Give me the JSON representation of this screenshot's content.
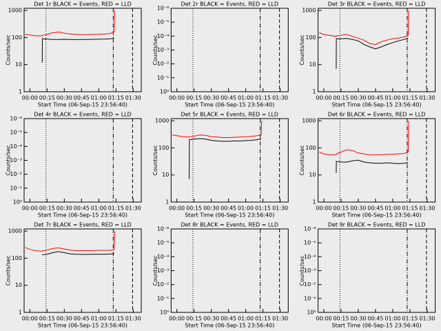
{
  "chart_data": [
    {
      "type": "line",
      "title": "Det 1r BLACK = Events, RED = LLD",
      "ylabel": "Counts/sec",
      "xlabel": "Start Time (06-Sep-15 23:56:40)",
      "log": true,
      "xlim": [
        -5,
        97
      ],
      "xticks": [
        {
          "value": 0,
          "label": "00:00"
        },
        {
          "value": 15,
          "label": "00:15"
        },
        {
          "value": 30,
          "label": "00:30"
        },
        {
          "value": 45,
          "label": "00:45"
        },
        {
          "value": 60,
          "label": "01:00"
        },
        {
          "value": 75,
          "label": "01:15"
        },
        {
          "value": 90,
          "label": "01:30"
        }
      ],
      "ylim": [
        1,
        1200
      ],
      "yticks": [
        1,
        10,
        100,
        1000
      ],
      "vlines": [
        {
          "value": 14,
          "style": "dotted"
        },
        {
          "value": 72.6,
          "style": "dash-dot"
        },
        {
          "value": 89.4,
          "style": "dashed"
        }
      ],
      "x": [
        -4,
        0,
        5,
        10.8,
        10.9,
        15,
        20,
        25,
        30,
        35,
        40,
        45,
        50,
        55,
        60,
        65,
        70,
        73.5,
        73.9
      ],
      "series": [
        {
          "color": "#000000",
          "values": [
            null,
            null,
            null,
            12,
            90,
            88,
            85,
            85,
            86,
            85,
            84,
            85,
            85,
            86,
            87,
            88,
            90,
            95,
            null
          ]
        },
        {
          "color": "#ff0000",
          "values": [
            130,
            125,
            115,
            115,
            120,
            130,
            150,
            160,
            145,
            135,
            130,
            128,
            128,
            130,
            132,
            135,
            140,
            170,
            1000
          ]
        }
      ]
    },
    {
      "type": "line",
      "title": "Det 2r BLACK = Events, RED = LLD",
      "ylabel": "Counts/sec",
      "xlabel": "Start Time (06-Sep-15 23:56:40)",
      "log": true,
      "xlim": [
        -5,
        97
      ],
      "xticks": [
        {
          "value": 0,
          "label": "00:00"
        },
        {
          "value": 15,
          "label": "00:15"
        },
        {
          "value": 30,
          "label": "00:30"
        },
        {
          "value": 45,
          "label": "00:45"
        },
        {
          "value": 60,
          "label": "01:00"
        },
        {
          "value": 75,
          "label": "01:15"
        },
        {
          "value": 90,
          "label": "01:30"
        }
      ],
      "ylim": [
        1,
        1e-06
      ],
      "yticks": [
        {
          "value": 1,
          "label": "10⁰"
        },
        {
          "value": 0.1,
          "label": "10⁻¹"
        },
        {
          "value": 0.01,
          "label": "10⁻²"
        },
        {
          "value": 0.001,
          "label": "10⁻³"
        },
        {
          "value": 0.0001,
          "label": "10⁻⁴"
        },
        {
          "value": 1e-05,
          "label": "10⁻⁵"
        },
        {
          "value": 1e-06,
          "label": "10⁻⁶"
        }
      ],
      "vlines": [
        {
          "value": 14,
          "style": "dotted"
        },
        {
          "value": 72.6,
          "style": "dash-dot"
        },
        {
          "value": 89.4,
          "style": "dashed"
        }
      ],
      "series": []
    },
    {
      "type": "line",
      "title": "Det 3r BLACK = Events, RED = LLD",
      "ylabel": "Counts/sec",
      "xlabel": "Start Time (06-Sep-15 23:56:40)",
      "log": true,
      "xlim": [
        -5,
        97
      ],
      "xticks": [
        {
          "value": 0,
          "label": "00:00"
        },
        {
          "value": 15,
          "label": "00:15"
        },
        {
          "value": 30,
          "label": "00:30"
        },
        {
          "value": 45,
          "label": "00:45"
        },
        {
          "value": 60,
          "label": "01:00"
        },
        {
          "value": 75,
          "label": "01:15"
        },
        {
          "value": 90,
          "label": "01:30"
        }
      ],
      "ylim": [
        1,
        1200
      ],
      "yticks": [
        1,
        10,
        100,
        1000
      ],
      "vlines": [
        {
          "value": 14,
          "style": "dotted"
        },
        {
          "value": 72.6,
          "style": "dash-dot"
        },
        {
          "value": 89.4,
          "style": "dashed"
        }
      ],
      "x": [
        -4,
        0,
        5,
        10.8,
        10.9,
        15,
        20,
        25,
        30,
        35,
        40,
        45,
        50,
        55,
        60,
        65,
        70,
        73.5,
        73.9
      ],
      "series": [
        {
          "color": "#000000",
          "values": [
            null,
            null,
            null,
            7,
            90,
            90,
            92,
            85,
            75,
            55,
            45,
            38,
            45,
            55,
            65,
            75,
            85,
            95,
            null
          ]
        },
        {
          "color": "#ff0000",
          "values": [
            150,
            130,
            120,
            110,
            115,
            120,
            130,
            110,
            95,
            80,
            60,
            55,
            70,
            80,
            90,
            95,
            105,
            120,
            1000
          ]
        }
      ]
    },
    {
      "type": "line",
      "title": "Det 4r BLACK = Events, RED = LLD",
      "ylabel": "Counts/sec",
      "xlabel": "Start Time (06-Sep-15 23:56:40)",
      "log": true,
      "xlim": [
        -5,
        97
      ],
      "xticks": [
        {
          "value": 0,
          "label": "00:00"
        },
        {
          "value": 15,
          "label": "00:15"
        },
        {
          "value": 30,
          "label": "00:30"
        },
        {
          "value": 45,
          "label": "00:45"
        },
        {
          "value": 60,
          "label": "01:00"
        },
        {
          "value": 75,
          "label": "01:15"
        },
        {
          "value": 90,
          "label": "01:30"
        }
      ],
      "ylim": [
        1,
        1e-06
      ],
      "yticks": [
        {
          "value": 1,
          "label": "10⁰"
        },
        {
          "value": 0.1,
          "label": "10⁻¹"
        },
        {
          "value": 0.01,
          "label": "10⁻²"
        },
        {
          "value": 0.001,
          "label": "10⁻³"
        },
        {
          "value": 0.0001,
          "label": "10⁻⁴"
        },
        {
          "value": 1e-05,
          "label": "10⁻⁵"
        },
        {
          "value": 1e-06,
          "label": "10⁻⁶"
        }
      ],
      "vlines": [
        {
          "value": 14,
          "style": "dotted"
        },
        {
          "value": 72.6,
          "style": "dash-dot"
        },
        {
          "value": 89.4,
          "style": "dashed"
        }
      ],
      "series": []
    },
    {
      "type": "line",
      "title": "Det 5r BLACK = Events, RED = LLD",
      "ylabel": "Counts/sec",
      "xlabel": "Start Time (06-Sep-15 23:56:40)",
      "log": true,
      "xlim": [
        -5,
        97
      ],
      "xticks": [
        {
          "value": 0,
          "label": "00:00"
        },
        {
          "value": 15,
          "label": "00:15"
        },
        {
          "value": 30,
          "label": "00:30"
        },
        {
          "value": 45,
          "label": "00:45"
        },
        {
          "value": 60,
          "label": "01:00"
        },
        {
          "value": 75,
          "label": "01:15"
        },
        {
          "value": 90,
          "label": "01:30"
        }
      ],
      "ylim": [
        1,
        1200
      ],
      "yticks": [
        1,
        10,
        100,
        1000
      ],
      "vlines": [
        {
          "value": 14,
          "style": "dotted"
        },
        {
          "value": 72.6,
          "style": "dash-dot"
        },
        {
          "value": 89.4,
          "style": "dashed"
        }
      ],
      "x": [
        -4,
        0,
        5,
        10.8,
        10.9,
        15,
        20,
        25,
        30,
        35,
        40,
        45,
        50,
        55,
        60,
        65,
        70,
        73.5,
        73.9
      ],
      "series": [
        {
          "color": "#000000",
          "values": [
            null,
            null,
            null,
            7,
            200,
            210,
            220,
            210,
            190,
            180,
            175,
            175,
            180,
            180,
            185,
            190,
            200,
            220,
            null
          ]
        },
        {
          "color": "#ff0000",
          "values": [
            300,
            280,
            260,
            250,
            255,
            270,
            300,
            290,
            260,
            250,
            240,
            240,
            245,
            250,
            255,
            265,
            280,
            300,
            1000
          ]
        }
      ]
    },
    {
      "type": "line",
      "title": "Det 6r BLACK = Events, RED = LLD",
      "ylabel": "Counts/sec",
      "xlabel": "Start Time (06-Sep-15 23:56:40)",
      "log": true,
      "xlim": [
        -5,
        97
      ],
      "xticks": [
        {
          "value": 0,
          "label": "00:00"
        },
        {
          "value": 15,
          "label": "00:15"
        },
        {
          "value": 30,
          "label": "00:30"
        },
        {
          "value": 45,
          "label": "00:45"
        },
        {
          "value": 60,
          "label": "01:00"
        },
        {
          "value": 75,
          "label": "01:15"
        },
        {
          "value": 90,
          "label": "01:30"
        }
      ],
      "ylim": [
        1,
        1200
      ],
      "yticks": [
        1,
        10,
        100,
        1000
      ],
      "vlines": [
        {
          "value": 14,
          "style": "dotted"
        },
        {
          "value": 72.6,
          "style": "dash-dot"
        },
        {
          "value": 89.4,
          "style": "dashed"
        }
      ],
      "x": [
        -4,
        0,
        5,
        10.8,
        10.9,
        15,
        20,
        25,
        30,
        35,
        40,
        45,
        50,
        55,
        60,
        65,
        70,
        73.5,
        73.9
      ],
      "series": [
        {
          "color": "#000000",
          "values": [
            null,
            null,
            null,
            12,
            32,
            30,
            30,
            33,
            35,
            30,
            28,
            27,
            27,
            28,
            27,
            26,
            27,
            28,
            null
          ]
        },
        {
          "color": "#ff0000",
          "values": [
            70,
            60,
            55,
            55,
            60,
            70,
            85,
            80,
            65,
            60,
            55,
            55,
            55,
            58,
            58,
            60,
            62,
            70,
            1000
          ]
        }
      ]
    },
    {
      "type": "line",
      "title": "Det 7r BLACK = Events, RED = LLD",
      "ylabel": "Counts/sec",
      "xlabel": "Start Time (06-Sep-15 23:56:40)",
      "log": true,
      "xlim": [
        -5,
        97
      ],
      "xticks": [
        {
          "value": 0,
          "label": "00:00"
        },
        {
          "value": 15,
          "label": "00:15"
        },
        {
          "value": 30,
          "label": "00:30"
        },
        {
          "value": 45,
          "label": "00:45"
        },
        {
          "value": 60,
          "label": "01:00"
        },
        {
          "value": 75,
          "label": "01:15"
        },
        {
          "value": 90,
          "label": "01:30"
        }
      ],
      "ylim": [
        1,
        1200
      ],
      "yticks": [
        1,
        10,
        100,
        1000
      ],
      "vlines": [
        {
          "value": 14,
          "style": "dotted"
        },
        {
          "value": 72.6,
          "style": "dash-dot"
        },
        {
          "value": 89.4,
          "style": "dashed"
        }
      ],
      "x": [
        -4,
        0,
        5,
        10.8,
        10.9,
        15,
        20,
        25,
        30,
        35,
        40,
        45,
        50,
        55,
        60,
        65,
        70,
        73.5,
        73.9
      ],
      "series": [
        {
          "color": "#000000",
          "values": [
            null,
            null,
            null,
            130,
            135,
            140,
            160,
            175,
            160,
            145,
            140,
            138,
            138,
            140,
            140,
            140,
            142,
            145,
            null
          ]
        },
        {
          "color": "#ff0000",
          "values": [
            250,
            210,
            190,
            180,
            185,
            200,
            230,
            240,
            220,
            200,
            190,
            190,
            190,
            190,
            195,
            195,
            195,
            210,
            1000
          ]
        }
      ]
    },
    {
      "type": "line",
      "title": "Det 8r BLACK = Events, RED = LLD",
      "ylabel": "Counts/sec",
      "xlabel": "Start Time (06-Sep-15 23:56:40)",
      "log": true,
      "xlim": [
        -5,
        97
      ],
      "xticks": [
        {
          "value": 0,
          "label": "00:00"
        },
        {
          "value": 15,
          "label": "00:15"
        },
        {
          "value": 30,
          "label": "00:30"
        },
        {
          "value": 45,
          "label": "00:45"
        },
        {
          "value": 60,
          "label": "01:00"
        },
        {
          "value": 75,
          "label": "01:15"
        },
        {
          "value": 90,
          "label": "01:30"
        }
      ],
      "ylim": [
        1,
        1e-06
      ],
      "yticks": [
        {
          "value": 1,
          "label": "10⁰"
        },
        {
          "value": 0.1,
          "label": "10⁻¹"
        },
        {
          "value": 0.01,
          "label": "10⁻²"
        },
        {
          "value": 0.001,
          "label": "10⁻³"
        },
        {
          "value": 0.0001,
          "label": "10⁻⁴"
        },
        {
          "value": 1e-05,
          "label": "10⁻⁵"
        },
        {
          "value": 1e-06,
          "label": "10⁻⁶"
        }
      ],
      "vlines": [
        {
          "value": 14,
          "style": "dotted"
        },
        {
          "value": 72.6,
          "style": "dash-dot"
        },
        {
          "value": 89.4,
          "style": "dashed"
        }
      ],
      "series": []
    },
    {
      "type": "line",
      "title": "Det 9r BLACK = Events, RED = LLD",
      "ylabel": "Counts/sec",
      "xlabel": "Start Time (06-Sep-15 23:56:40)",
      "log": true,
      "xlim": [
        -5,
        97
      ],
      "xticks": [
        {
          "value": 0,
          "label": "00:00"
        },
        {
          "value": 15,
          "label": "00:15"
        },
        {
          "value": 30,
          "label": "00:30"
        },
        {
          "value": 45,
          "label": "00:45"
        },
        {
          "value": 60,
          "label": "01:00"
        },
        {
          "value": 75,
          "label": "01:15"
        },
        {
          "value": 90,
          "label": "01:30"
        }
      ],
      "ylim": [
        1,
        1e-06
      ],
      "yticks": [
        {
          "value": 1,
          "label": "10⁰"
        },
        {
          "value": 0.1,
          "label": "10⁻¹"
        },
        {
          "value": 0.01,
          "label": "10⁻²"
        },
        {
          "value": 0.001,
          "label": "10⁻³"
        },
        {
          "value": 0.0001,
          "label": "10⁻⁴"
        },
        {
          "value": 1e-05,
          "label": "10⁻⁵"
        },
        {
          "value": 1e-06,
          "label": "10⁻⁶"
        }
      ],
      "vlines": [
        {
          "value": 14,
          "style": "dotted"
        },
        {
          "value": 72.6,
          "style": "dash-dot"
        },
        {
          "value": 89.4,
          "style": "dashed"
        }
      ],
      "series": []
    }
  ]
}
